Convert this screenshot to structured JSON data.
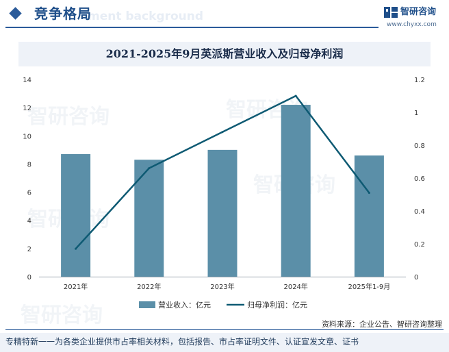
{
  "header": {
    "title": "竞争格局",
    "ghost_text": "ment background",
    "brand_name": "智研咨询",
    "brand_url": "www.chyxx.com"
  },
  "watermark_text": "智研咨询",
  "chart_data": {
    "type": "bar+line",
    "title": "2021-2025年9月英派斯营业收入及归母净利润",
    "categories": [
      "2021年",
      "2022年",
      "2023年",
      "2024年",
      "2025年1-9月"
    ],
    "series": [
      {
        "name": "营业收入：亿元",
        "type": "bar",
        "axis": "left",
        "color": "#5b8fa8",
        "values": [
          8.7,
          8.3,
          9.0,
          12.2,
          8.6
        ]
      },
      {
        "name": "归母净利润：亿元",
        "type": "line",
        "axis": "right",
        "color": "#0e5a73",
        "values": [
          0.17,
          0.66,
          0.88,
          1.1,
          0.51
        ]
      }
    ],
    "y_left": {
      "min": 0,
      "max": 14,
      "ticks": [
        "0",
        "2",
        "4",
        "6",
        "8",
        "10",
        "12",
        "14"
      ]
    },
    "y_right": {
      "min": 0,
      "max": 1.2,
      "ticks": [
        "0",
        "0.2",
        "0.4",
        "0.6",
        "0.8",
        "1",
        "1.2"
      ]
    },
    "legend_position": "bottom"
  },
  "source": "资料来源：企业公告、智研咨询整理",
  "footer": "专精特新一一为各类企业提供市占率相关材料，包括报告、市占率证明文件、认证宣发文章、证书"
}
